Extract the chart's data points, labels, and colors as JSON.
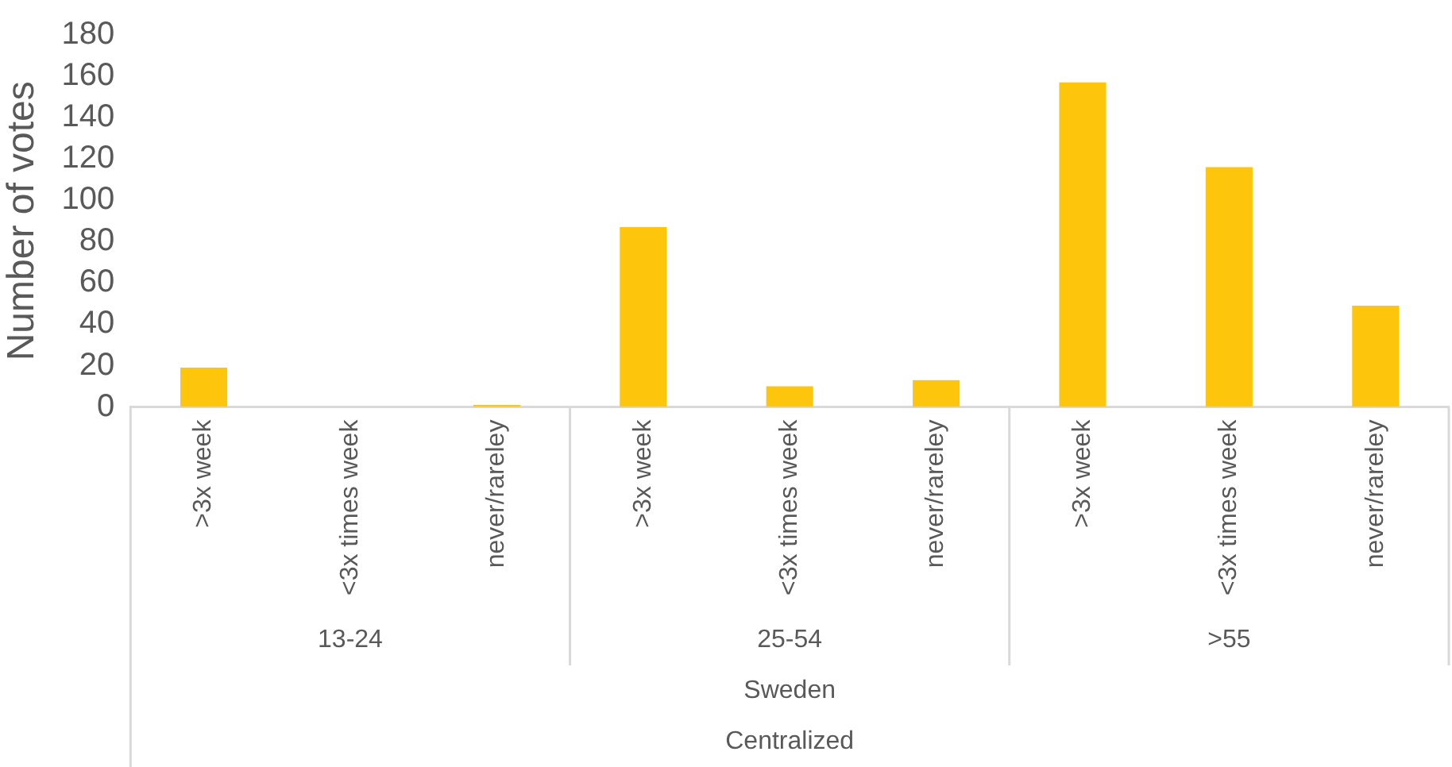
{
  "chart_data": {
    "type": "bar",
    "ylabel": "Number of votes",
    "categories": [
      ">3x week",
      "<3x times week",
      "never/rareley",
      ">3x week",
      "<3x times week",
      "never/rareley",
      ">3x week",
      "<3x times week",
      "never/rareley"
    ],
    "values": [
      19,
      0,
      1,
      87,
      10,
      13,
      157,
      116,
      49
    ],
    "color": "#fdc50b",
    "ylim": [
      0,
      180
    ],
    "yticks": [
      0,
      20,
      40,
      60,
      80,
      100,
      120,
      140,
      160,
      180
    ],
    "annotations": [
      "13-24",
      "25-54",
      ">55",
      "Sweden",
      "Centralized"
    ],
    "grid": false,
    "legend": false
  }
}
